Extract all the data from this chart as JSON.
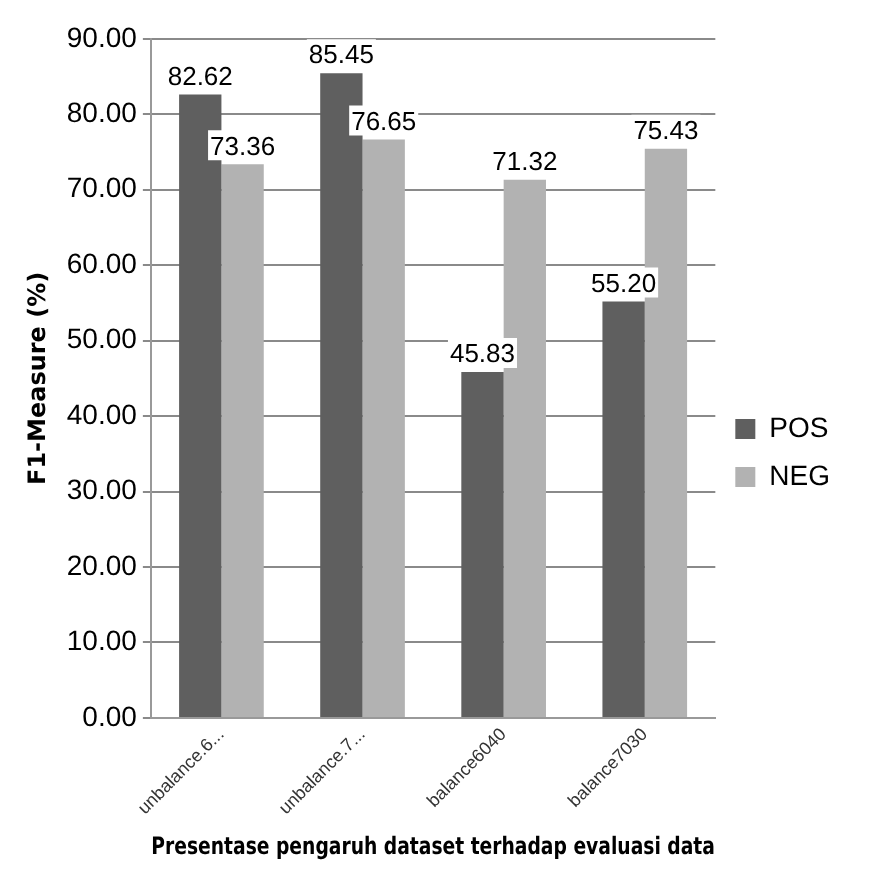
{
  "chart_data": {
    "type": "bar",
    "xlabel": "Presentase pengaruh dataset terhadap evaluasi data",
    "ylabel": "F1-Measure (%)",
    "categories": [
      "unbalance.6...",
      "unbalance.7...",
      "balance6040",
      "balance7030"
    ],
    "series": [
      {
        "name": "POS",
        "color": "#5f5f5f",
        "values": [
          82.62,
          85.45,
          45.83,
          55.2
        ],
        "value_labels": [
          "82.62",
          "85.45",
          "45.83",
          "55.20"
        ]
      },
      {
        "name": "NEG",
        "color": "#b2b2b2",
        "values": [
          73.36,
          76.65,
          71.32,
          75.43
        ],
        "value_labels": [
          "73.36",
          "76.65",
          "71.32",
          "75.43"
        ]
      }
    ],
    "ylim": [
      0,
      90
    ],
    "yticks": [
      {
        "value": 0,
        "label": "0.00"
      },
      {
        "value": 10,
        "label": "10.00"
      },
      {
        "value": 20,
        "label": "20.00"
      },
      {
        "value": 30,
        "label": "30.00"
      },
      {
        "value": 40,
        "label": "40.00"
      },
      {
        "value": 50,
        "label": "50.00"
      },
      {
        "value": 60,
        "label": "60.00"
      },
      {
        "value": 70,
        "label": "70.00"
      },
      {
        "value": 80,
        "label": "80.00"
      },
      {
        "value": 90,
        "label": "90.00"
      }
    ],
    "grid": "y",
    "legend": "right"
  }
}
